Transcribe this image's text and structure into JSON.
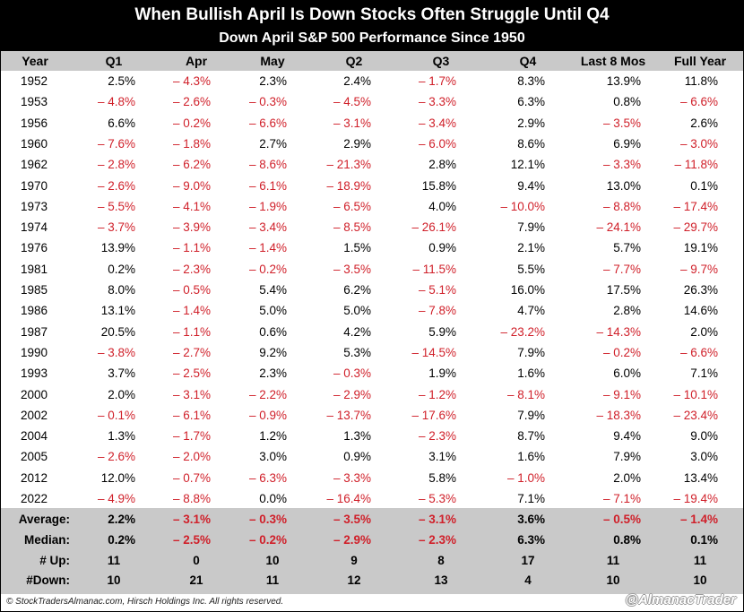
{
  "title": "When Bullish April Is Down Stocks Often Struggle Until Q4",
  "subtitle": "Down April S&P 500 Performance Since 1950",
  "footer": "© StockTradersAlmanac.com, Hirsch Holdings Inc. All rights reserved.",
  "watermark": "@AlmanacTrader",
  "colors": {
    "negative": "#d0202a",
    "positive": "#000000",
    "header_bg": "#000000",
    "band_bg": "#c9c9c9"
  },
  "chart_data": {
    "type": "table",
    "columns": [
      "Year",
      "Q1",
      "Apr",
      "May",
      "Q2",
      "Q3",
      "Q4",
      "Last 8 Mos",
      "Full Year"
    ],
    "rows": [
      [
        "1952",
        "2.5%",
        "– 4.3%",
        "2.3%",
        "2.4%",
        "– 1.7%",
        "8.3%",
        "13.9%",
        "11.8%"
      ],
      [
        "1953",
        "– 4.8%",
        "– 2.6%",
        "– 0.3%",
        "– 4.5%",
        "– 3.3%",
        "6.3%",
        "0.8%",
        "– 6.6%"
      ],
      [
        "1956",
        "6.6%",
        "– 0.2%",
        "– 6.6%",
        "– 3.1%",
        "– 3.4%",
        "2.9%",
        "– 3.5%",
        "2.6%"
      ],
      [
        "1960",
        "– 7.6%",
        "– 1.8%",
        "2.7%",
        "2.9%",
        "– 6.0%",
        "8.6%",
        "6.9%",
        "– 3.0%"
      ],
      [
        "1962",
        "– 2.8%",
        "– 6.2%",
        "– 8.6%",
        "– 21.3%",
        "2.8%",
        "12.1%",
        "– 3.3%",
        "– 11.8%"
      ],
      [
        "1970",
        "– 2.6%",
        "– 9.0%",
        "– 6.1%",
        "– 18.9%",
        "15.8%",
        "9.4%",
        "13.0%",
        "0.1%"
      ],
      [
        "1973",
        "– 5.5%",
        "– 4.1%",
        "– 1.9%",
        "– 6.5%",
        "4.0%",
        "– 10.0%",
        "– 8.8%",
        "– 17.4%"
      ],
      [
        "1974",
        "– 3.7%",
        "– 3.9%",
        "– 3.4%",
        "– 8.5%",
        "– 26.1%",
        "7.9%",
        "– 24.1%",
        "– 29.7%"
      ],
      [
        "1976",
        "13.9%",
        "– 1.1%",
        "– 1.4%",
        "1.5%",
        "0.9%",
        "2.1%",
        "5.7%",
        "19.1%"
      ],
      [
        "1981",
        "0.2%",
        "– 2.3%",
        "– 0.2%",
        "– 3.5%",
        "– 11.5%",
        "5.5%",
        "– 7.7%",
        "– 9.7%"
      ],
      [
        "1985",
        "8.0%",
        "– 0.5%",
        "5.4%",
        "6.2%",
        "– 5.1%",
        "16.0%",
        "17.5%",
        "26.3%"
      ],
      [
        "1986",
        "13.1%",
        "– 1.4%",
        "5.0%",
        "5.0%",
        "– 7.8%",
        "4.7%",
        "2.8%",
        "14.6%"
      ],
      [
        "1987",
        "20.5%",
        "– 1.1%",
        "0.6%",
        "4.2%",
        "5.9%",
        "– 23.2%",
        "– 14.3%",
        "2.0%"
      ],
      [
        "1990",
        "– 3.8%",
        "– 2.7%",
        "9.2%",
        "5.3%",
        "– 14.5%",
        "7.9%",
        "– 0.2%",
        "– 6.6%"
      ],
      [
        "1993",
        "3.7%",
        "– 2.5%",
        "2.3%",
        "– 0.3%",
        "1.9%",
        "1.6%",
        "6.0%",
        "7.1%"
      ],
      [
        "2000",
        "2.0%",
        "– 3.1%",
        "– 2.2%",
        "– 2.9%",
        "– 1.2%",
        "– 8.1%",
        "– 9.1%",
        "– 10.1%"
      ],
      [
        "2002",
        "– 0.1%",
        "– 6.1%",
        "– 0.9%",
        "– 13.7%",
        "– 17.6%",
        "7.9%",
        "– 18.3%",
        "– 23.4%"
      ],
      [
        "2004",
        "1.3%",
        "– 1.7%",
        "1.2%",
        "1.3%",
        "– 2.3%",
        "8.7%",
        "9.4%",
        "9.0%"
      ],
      [
        "2005",
        "– 2.6%",
        "– 2.0%",
        "3.0%",
        "0.9%",
        "3.1%",
        "1.6%",
        "7.9%",
        "3.0%"
      ],
      [
        "2012",
        "12.0%",
        "– 0.7%",
        "– 6.3%",
        "– 3.3%",
        "5.8%",
        "– 1.0%",
        "2.0%",
        "13.4%"
      ],
      [
        "2022",
        "– 4.9%",
        "– 8.8%",
        "0.0%",
        "– 16.4%",
        "– 5.3%",
        "7.1%",
        "– 7.1%",
        "– 19.4%"
      ]
    ],
    "summary": [
      [
        "Average:",
        "2.2%",
        "– 3.1%",
        "– 0.3%",
        "– 3.5%",
        "– 3.1%",
        "3.6%",
        "– 0.5%",
        "– 1.4%"
      ],
      [
        "Median:",
        "0.2%",
        "– 2.5%",
        "– 0.2%",
        "– 2.9%",
        "– 2.3%",
        "6.3%",
        "0.8%",
        "0.1%"
      ],
      [
        "# Up:",
        "11",
        "0",
        "10",
        "9",
        "8",
        "17",
        "11",
        "11"
      ],
      [
        "#Down:",
        "10",
        "21",
        "11",
        "12",
        "13",
        "4",
        "10",
        "10"
      ]
    ]
  }
}
